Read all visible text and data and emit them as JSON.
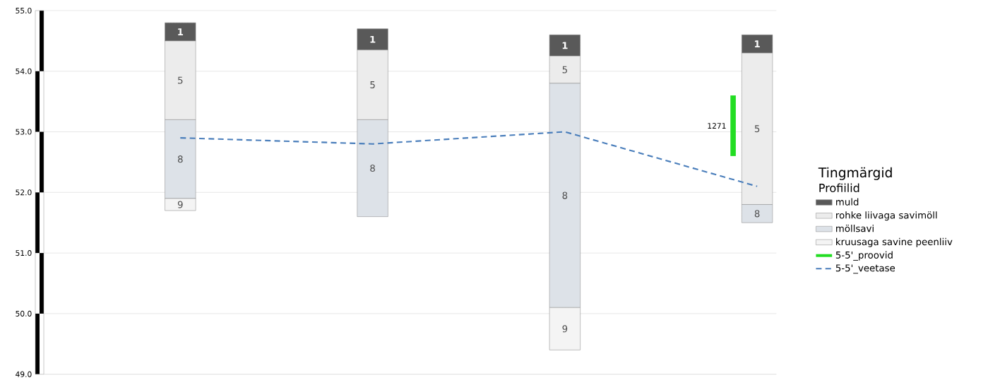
{
  "chart_data": {
    "type": "bar",
    "categories": [
      null,
      null,
      null,
      null
    ],
    "series": [
      {
        "name": "muld",
        "color": "#595959",
        "base": [
          54.5,
          54.35,
          54.25,
          54.3
        ],
        "values": [
          0.3,
          0.35,
          0.35,
          0.3
        ]
      },
      {
        "name": "rohke liivaga savimöll",
        "color": "#ececec",
        "base": [
          53.2,
          53.2,
          53.8,
          51.8
        ],
        "values": [
          1.3,
          1.15,
          0.45,
          2.5
        ]
      },
      {
        "name": "möllsavi",
        "color": "#dde2e8",
        "base": [
          51.9,
          51.6,
          50.1,
          51.5
        ],
        "values": [
          1.3,
          1.6,
          3.7,
          0.3
        ]
      },
      {
        "name": "kruusaga savine peenliiv",
        "color": "#f4f4f4",
        "base": [
          51.7,
          null,
          49.4,
          null
        ],
        "values": [
          0.2,
          null,
          0.7,
          null
        ]
      },
      {
        "name": "5-5'_proovid",
        "color": "#22dd22",
        "base": [
          null,
          null,
          null,
          52.6
        ],
        "values": [
          null,
          null,
          null,
          1.0
        ]
      },
      {
        "name": "5-5'_veetase",
        "type": "line",
        "color": "#4a7ebb",
        "line_style": "dashed",
        "values": [
          52.9,
          52.8,
          53.0,
          52.1
        ]
      }
    ],
    "ylim": [
      49,
      55
    ],
    "yticks": [
      {
        "value": 49,
        "label": "49.0"
      },
      {
        "value": 50,
        "label": "50.0"
      },
      {
        "value": 51,
        "label": "51.0"
      },
      {
        "value": 52,
        "label": "52.0"
      },
      {
        "value": 53,
        "label": "53.0"
      },
      {
        "value": 54,
        "label": "54.0"
      },
      {
        "value": 55,
        "label": "55.0"
      }
    ],
    "grid": "y",
    "tick_labels": "y",
    "legend": "right",
    "legend_title": "Tingmärgid",
    "annotations": [
      "1271",
      "Profiilid",
      "1",
      "1",
      "1",
      "1",
      "5",
      "5",
      "5",
      "5",
      "8",
      "8",
      "8",
      "8",
      "9",
      "9"
    ]
  }
}
